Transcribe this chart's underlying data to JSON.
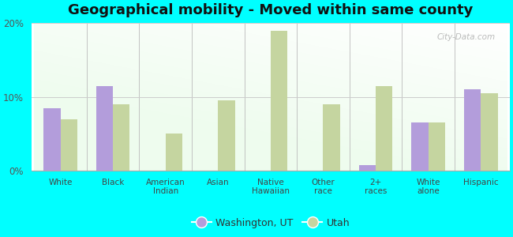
{
  "title": "Geographical mobility - Moved within same county",
  "categories": [
    "White",
    "Black",
    "American\nIndian",
    "Asian",
    "Native\nHawaiian",
    "Other\nrace",
    "2+\nraces",
    "White\nalone",
    "Hispanic"
  ],
  "washington_values": [
    8.5,
    11.5,
    0.0,
    0.0,
    0.0,
    0.0,
    0.8,
    6.5,
    11.0
  ],
  "utah_values": [
    7.0,
    9.0,
    5.0,
    9.5,
    19.0,
    9.0,
    11.5,
    6.5,
    10.5
  ],
  "washington_color": "#b39ddb",
  "utah_color": "#c5d5a0",
  "ylim": [
    0,
    20
  ],
  "yticks": [
    0,
    10,
    20
  ],
  "ytick_labels": [
    "0%",
    "10%",
    "20%"
  ],
  "figure_bg_color": "#00ffff",
  "legend_washington": "Washington, UT",
  "legend_utah": "Utah",
  "watermark": "City-Data.com",
  "title_fontsize": 13,
  "bar_width": 0.32
}
